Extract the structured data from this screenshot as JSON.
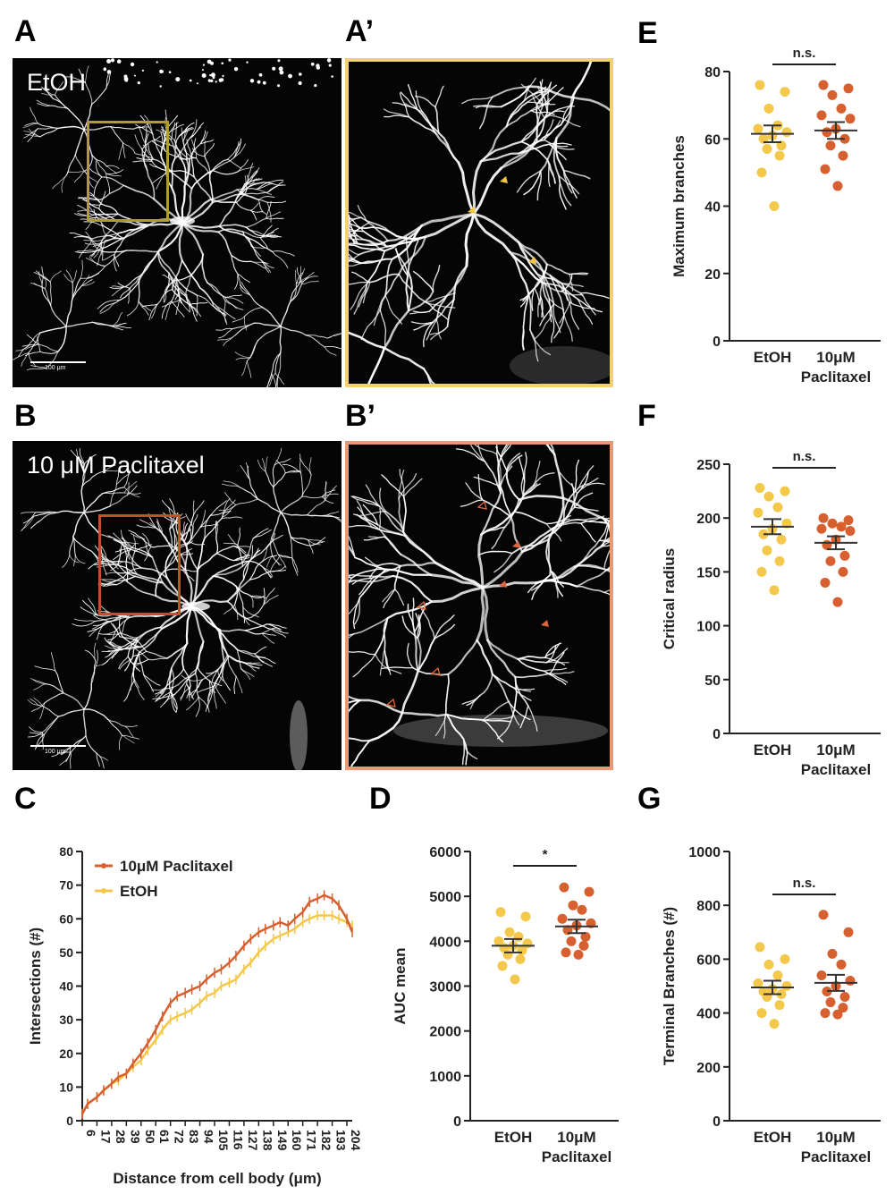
{
  "panels": {
    "A": "A",
    "A_prime": "A’",
    "B": "B",
    "B_prime": "B’",
    "C": "C",
    "D": "D",
    "E": "E",
    "F": "F",
    "G": "G"
  },
  "images": {
    "A": {
      "condition": "EtOH",
      "scale_bar": "100 μm",
      "box_color": "#b19a3a"
    },
    "A_prime": {
      "border_color": "#f3d071",
      "arrowhead_color": "#f6c542"
    },
    "B": {
      "condition": "10 μM Paclitaxel",
      "scale_bar": "100 μm",
      "box_color": "#c0512a"
    },
    "B_prime": {
      "border_color": "#e89a78",
      "arrowhead_color": "#e0653a"
    }
  },
  "colors": {
    "etoh": "#f4c84a",
    "paclitaxel": "#d6602f"
  },
  "chart_data": [
    {
      "id": "C",
      "type": "line",
      "xlabel": "Distance from cell body (μm)",
      "ylabel": "Intersections (#)",
      "x_ticks": [
        "6",
        "17",
        "28",
        "39",
        "50",
        "61",
        "72",
        "83",
        "94",
        "105",
        "116",
        "127",
        "138",
        "149",
        "160",
        "171",
        "182",
        "193",
        "204"
      ],
      "xlim": [
        6,
        208
      ],
      "ylim": [
        0,
        80
      ],
      "y_ticks": [
        0,
        10,
        20,
        30,
        40,
        50,
        60,
        70,
        80
      ],
      "legend_position": "top-left",
      "series": [
        {
          "name": "10μM Paclitaxel",
          "color": "#d6602f",
          "x": [
            6,
            10,
            17,
            22,
            28,
            33,
            39,
            44,
            50,
            55,
            61,
            66,
            72,
            77,
            83,
            88,
            94,
            99,
            105,
            110,
            116,
            121,
            127,
            132,
            138,
            143,
            149,
            154,
            160,
            165,
            171,
            176,
            182,
            187,
            193,
            198,
            204,
            208
          ],
          "y": [
            2,
            5,
            7,
            9,
            11,
            13,
            14,
            17,
            20,
            23,
            27,
            31,
            35,
            37,
            38,
            39,
            40,
            42,
            44,
            45,
            47,
            49,
            52,
            54,
            56,
            57,
            58,
            59,
            58,
            60,
            62,
            65,
            66,
            67,
            66,
            64,
            60,
            56
          ]
        },
        {
          "name": "EtOH",
          "color": "#f4c84a",
          "x": [
            6,
            10,
            17,
            22,
            28,
            33,
            39,
            44,
            50,
            55,
            61,
            66,
            72,
            77,
            83,
            88,
            94,
            99,
            105,
            110,
            116,
            121,
            127,
            132,
            138,
            143,
            149,
            154,
            160,
            165,
            171,
            176,
            182,
            187,
            193,
            198,
            204,
            208
          ],
          "y": [
            2,
            5,
            7,
            9,
            11,
            12,
            14,
            16,
            18,
            21,
            24,
            27,
            30,
            31,
            32,
            33,
            35,
            37,
            38,
            40,
            41,
            42,
            45,
            47,
            50,
            52,
            54,
            55,
            56,
            57,
            59,
            60,
            61,
            61,
            61,
            60,
            59,
            58
          ]
        }
      ]
    },
    {
      "id": "D",
      "type": "scatter",
      "categories": [
        "EtOH",
        "10μM",
        "Paclitaxel"
      ],
      "ylabel": "AUC mean",
      "ylim": [
        0,
        6000
      ],
      "y_ticks": [
        0,
        1000,
        2000,
        3000,
        4000,
        5000,
        6000
      ],
      "significance": "*",
      "series": [
        {
          "group": "EtOH",
          "color": "#f4c84a",
          "mean": 3900,
          "sem": 150,
          "values": [
            4650,
            4550,
            4200,
            4100,
            4000,
            3950,
            3900,
            3850,
            3800,
            3700,
            3600,
            3450,
            3150
          ]
        },
        {
          "group": "10μM Paclitaxel",
          "color": "#d6602f",
          "mean": 4330,
          "sem": 150,
          "values": [
            5200,
            5100,
            4800,
            4700,
            4500,
            4400,
            4350,
            4250,
            4100,
            4000,
            3900,
            3750,
            3700
          ]
        }
      ]
    },
    {
      "id": "E",
      "type": "scatter",
      "categories": [
        "EtOH",
        "10μM",
        "Paclitaxel"
      ],
      "ylabel": "Maximum branches",
      "ylim": [
        0,
        80
      ],
      "y_ticks": [
        0,
        20,
        40,
        60,
        80
      ],
      "significance": "n.s.",
      "series": [
        {
          "group": "EtOH",
          "color": "#f4c84a",
          "mean": 61.5,
          "sem": 2.5,
          "values": [
            76,
            74,
            69,
            64,
            63,
            62,
            61,
            60,
            58,
            57,
            55,
            50,
            40
          ]
        },
        {
          "group": "10μM Paclitaxel",
          "color": "#d6602f",
          "mean": 62.5,
          "sem": 2.5,
          "values": [
            76,
            75,
            73,
            69,
            67,
            66,
            63,
            62,
            60,
            58,
            55,
            51,
            46
          ]
        }
      ]
    },
    {
      "id": "F",
      "type": "scatter",
      "categories": [
        "EtOH",
        "10μM",
        "Paclitaxel"
      ],
      "ylabel": "Critical radius",
      "ylim": [
        0,
        250
      ],
      "y_ticks": [
        0,
        50,
        100,
        150,
        200,
        250
      ],
      "significance": "n.s.",
      "series": [
        {
          "group": "EtOH",
          "color": "#f4c84a",
          "mean": 192,
          "sem": 7,
          "values": [
            228,
            225,
            220,
            210,
            205,
            195,
            190,
            185,
            180,
            170,
            160,
            150,
            133
          ]
        },
        {
          "group": "10μM Paclitaxel",
          "color": "#d6602f",
          "mean": 177,
          "sem": 6,
          "values": [
            200,
            198,
            195,
            192,
            190,
            188,
            180,
            175,
            165,
            160,
            150,
            140,
            122
          ]
        }
      ]
    },
    {
      "id": "G",
      "type": "scatter",
      "categories": [
        "EtOH",
        "10μM",
        "Paclitaxel"
      ],
      "ylabel": "Terminal Branches (#)",
      "ylim": [
        0,
        1000
      ],
      "y_ticks": [
        0,
        200,
        400,
        600,
        800,
        1000
      ],
      "significance": "n.s.",
      "series": [
        {
          "group": "EtOH",
          "color": "#f4c84a",
          "mean": 495,
          "sem": 25,
          "values": [
            645,
            600,
            580,
            540,
            510,
            500,
            490,
            480,
            470,
            460,
            430,
            400,
            360
          ]
        },
        {
          "group": "10μM Paclitaxel",
          "color": "#d6602f",
          "mean": 512,
          "sem": 30,
          "values": [
            765,
            700,
            620,
            580,
            540,
            520,
            500,
            480,
            460,
            440,
            420,
            400,
            395
          ]
        }
      ]
    }
  ]
}
